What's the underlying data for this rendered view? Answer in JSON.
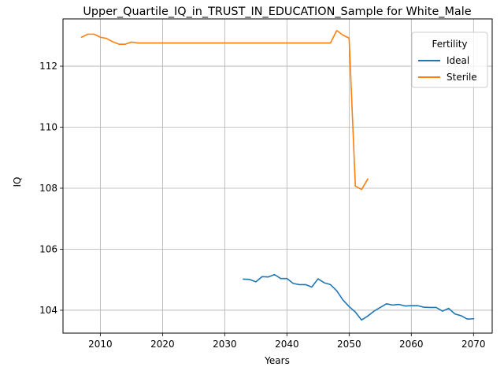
{
  "chart_data": {
    "type": "line",
    "title": "Upper_Quartile_IQ_in_TRUST_IN_EDUCATION_Sample for White_Male",
    "xlabel": "Years",
    "ylabel": "IQ",
    "xlim": [
      2004,
      2073
    ],
    "ylim": [
      103.25,
      113.55
    ],
    "xticks": [
      2010,
      2020,
      2030,
      2040,
      2050,
      2060,
      2070
    ],
    "yticks": [
      104,
      106,
      108,
      110,
      112
    ],
    "grid": true,
    "legend": {
      "title": "Fertility",
      "position": "top-right"
    },
    "series": [
      {
        "name": "Ideal",
        "color": "#1f77b4",
        "points": [
          [
            2033,
            105.02
          ],
          [
            2034,
            105.01
          ],
          [
            2035,
            104.93
          ],
          [
            2036,
            105.1
          ],
          [
            2037,
            105.09
          ],
          [
            2038,
            105.17
          ],
          [
            2039,
            105.04
          ],
          [
            2040,
            105.04
          ],
          [
            2041,
            104.88
          ],
          [
            2042,
            104.84
          ],
          [
            2043,
            104.84
          ],
          [
            2044,
            104.76
          ],
          [
            2045,
            105.03
          ],
          [
            2046,
            104.9
          ],
          [
            2047,
            104.84
          ],
          [
            2048,
            104.64
          ],
          [
            2049,
            104.34
          ],
          [
            2050,
            104.12
          ],
          [
            2051,
            103.94
          ],
          [
            2052,
            103.68
          ],
          [
            2053,
            103.81
          ],
          [
            2054,
            103.97
          ],
          [
            2055,
            104.09
          ],
          [
            2056,
            104.21
          ],
          [
            2057,
            104.17
          ],
          [
            2058,
            104.19
          ],
          [
            2059,
            104.14
          ],
          [
            2060,
            104.15
          ],
          [
            2061,
            104.15
          ],
          [
            2062,
            104.1
          ],
          [
            2063,
            104.09
          ],
          [
            2064,
            104.09
          ],
          [
            2065,
            103.97
          ],
          [
            2066,
            104.06
          ],
          [
            2067,
            103.88
          ],
          [
            2068,
            103.82
          ],
          [
            2069,
            103.71
          ],
          [
            2070,
            103.72
          ]
        ]
      },
      {
        "name": "Sterile",
        "color": "#ff7f0e",
        "points": [
          [
            2007,
            112.95
          ],
          [
            2008,
            113.05
          ],
          [
            2009,
            113.05
          ],
          [
            2010,
            112.95
          ],
          [
            2011,
            112.91
          ],
          [
            2012,
            112.8
          ],
          [
            2013,
            112.72
          ],
          [
            2014,
            112.72
          ],
          [
            2015,
            112.79
          ],
          [
            2016,
            112.76
          ],
          [
            2017,
            112.76
          ],
          [
            2018,
            112.76
          ],
          [
            2019,
            112.76
          ],
          [
            2020,
            112.76
          ],
          [
            2025,
            112.76
          ],
          [
            2030,
            112.76
          ],
          [
            2035,
            112.76
          ],
          [
            2040,
            112.76
          ],
          [
            2045,
            112.76
          ],
          [
            2047,
            112.76
          ],
          [
            2048,
            113.17
          ],
          [
            2049,
            113.02
          ],
          [
            2050,
            112.92
          ],
          [
            2051,
            108.07
          ],
          [
            2052,
            107.96
          ],
          [
            2053,
            108.3
          ]
        ]
      }
    ]
  }
}
